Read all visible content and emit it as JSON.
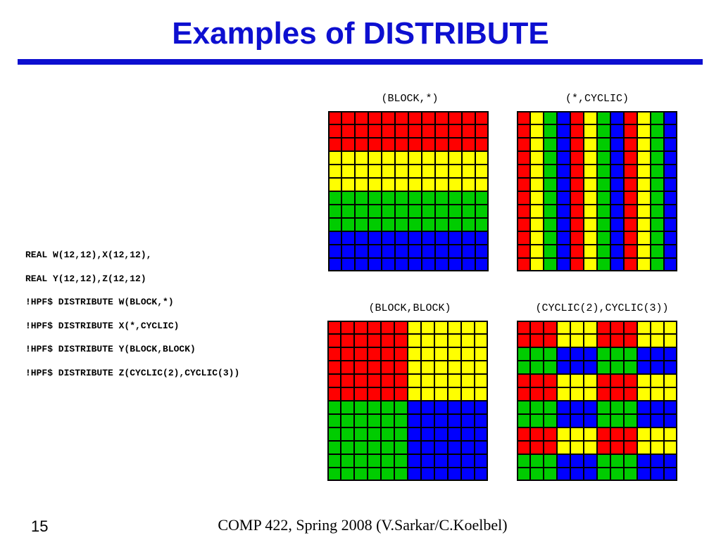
{
  "slide": {
    "title": "Examples of DISTRIBUTE",
    "slide_number": "15",
    "footer": "COMP 422, Spring 2008 (V.Sarkar/C.Koelbel)"
  },
  "code_lines": [
    "REAL W(12,12),X(12,12),",
    "REAL Y(12,12),Z(12,12)",
    "!HPF$ DISTRIBUTE W(BLOCK,*)",
    "!HPF$ DISTRIBUTE X(*,CYCLIC)",
    "!HPF$ DISTRIBUTE Y(BLOCK,BLOCK)",
    "!HPF$ DISTRIBUTE Z(CYCLIC(2),CYCLIC(3))"
  ],
  "colors": {
    "title_blue": "#0d0fd0",
    "processor_colors": [
      "#ff0000",
      "#ffff00",
      "#00cc00",
      "#0000ff"
    ],
    "cell_border": "#000000"
  },
  "grids": [
    {
      "label": "(BLOCK,*)",
      "rows": 12,
      "cols": 12,
      "cells": [
        [
          0,
          0,
          0,
          0,
          0,
          0,
          0,
          0,
          0,
          0,
          0,
          0
        ],
        [
          0,
          0,
          0,
          0,
          0,
          0,
          0,
          0,
          0,
          0,
          0,
          0
        ],
        [
          0,
          0,
          0,
          0,
          0,
          0,
          0,
          0,
          0,
          0,
          0,
          0
        ],
        [
          1,
          1,
          1,
          1,
          1,
          1,
          1,
          1,
          1,
          1,
          1,
          1
        ],
        [
          1,
          1,
          1,
          1,
          1,
          1,
          1,
          1,
          1,
          1,
          1,
          1
        ],
        [
          1,
          1,
          1,
          1,
          1,
          1,
          1,
          1,
          1,
          1,
          1,
          1
        ],
        [
          2,
          2,
          2,
          2,
          2,
          2,
          2,
          2,
          2,
          2,
          2,
          2
        ],
        [
          2,
          2,
          2,
          2,
          2,
          2,
          2,
          2,
          2,
          2,
          2,
          2
        ],
        [
          2,
          2,
          2,
          2,
          2,
          2,
          2,
          2,
          2,
          2,
          2,
          2
        ],
        [
          3,
          3,
          3,
          3,
          3,
          3,
          3,
          3,
          3,
          3,
          3,
          3
        ],
        [
          3,
          3,
          3,
          3,
          3,
          3,
          3,
          3,
          3,
          3,
          3,
          3
        ],
        [
          3,
          3,
          3,
          3,
          3,
          3,
          3,
          3,
          3,
          3,
          3,
          3
        ]
      ]
    },
    {
      "label": "(*,CYCLIC)",
      "rows": 12,
      "cols": 12,
      "cells": [
        [
          0,
          1,
          2,
          3,
          0,
          1,
          2,
          3,
          0,
          1,
          2,
          3
        ],
        [
          0,
          1,
          2,
          3,
          0,
          1,
          2,
          3,
          0,
          1,
          2,
          3
        ],
        [
          0,
          1,
          2,
          3,
          0,
          1,
          2,
          3,
          0,
          1,
          2,
          3
        ],
        [
          0,
          1,
          2,
          3,
          0,
          1,
          2,
          3,
          0,
          1,
          2,
          3
        ],
        [
          0,
          1,
          2,
          3,
          0,
          1,
          2,
          3,
          0,
          1,
          2,
          3
        ],
        [
          0,
          1,
          2,
          3,
          0,
          1,
          2,
          3,
          0,
          1,
          2,
          3
        ],
        [
          0,
          1,
          2,
          3,
          0,
          1,
          2,
          3,
          0,
          1,
          2,
          3
        ],
        [
          0,
          1,
          2,
          3,
          0,
          1,
          2,
          3,
          0,
          1,
          2,
          3
        ],
        [
          0,
          1,
          2,
          3,
          0,
          1,
          2,
          3,
          0,
          1,
          2,
          3
        ],
        [
          0,
          1,
          2,
          3,
          0,
          1,
          2,
          3,
          0,
          1,
          2,
          3
        ],
        [
          0,
          1,
          2,
          3,
          0,
          1,
          2,
          3,
          0,
          1,
          2,
          3
        ],
        [
          0,
          1,
          2,
          3,
          0,
          1,
          2,
          3,
          0,
          1,
          2,
          3
        ]
      ]
    },
    {
      "label": "(BLOCK,BLOCK)",
      "rows": 12,
      "cols": 12,
      "cells": [
        [
          0,
          0,
          0,
          0,
          0,
          0,
          1,
          1,
          1,
          1,
          1,
          1
        ],
        [
          0,
          0,
          0,
          0,
          0,
          0,
          1,
          1,
          1,
          1,
          1,
          1
        ],
        [
          0,
          0,
          0,
          0,
          0,
          0,
          1,
          1,
          1,
          1,
          1,
          1
        ],
        [
          0,
          0,
          0,
          0,
          0,
          0,
          1,
          1,
          1,
          1,
          1,
          1
        ],
        [
          0,
          0,
          0,
          0,
          0,
          0,
          1,
          1,
          1,
          1,
          1,
          1
        ],
        [
          0,
          0,
          0,
          0,
          0,
          0,
          1,
          1,
          1,
          1,
          1,
          1
        ],
        [
          2,
          2,
          2,
          2,
          2,
          2,
          3,
          3,
          3,
          3,
          3,
          3
        ],
        [
          2,
          2,
          2,
          2,
          2,
          2,
          3,
          3,
          3,
          3,
          3,
          3
        ],
        [
          2,
          2,
          2,
          2,
          2,
          2,
          3,
          3,
          3,
          3,
          3,
          3
        ],
        [
          2,
          2,
          2,
          2,
          2,
          2,
          3,
          3,
          3,
          3,
          3,
          3
        ],
        [
          2,
          2,
          2,
          2,
          2,
          2,
          3,
          3,
          3,
          3,
          3,
          3
        ],
        [
          2,
          2,
          2,
          2,
          2,
          2,
          3,
          3,
          3,
          3,
          3,
          3
        ]
      ]
    },
    {
      "label": "(CYCLIC(2),CYCLIC(3))",
      "rows": 12,
      "cols": 12,
      "cells": [
        [
          0,
          0,
          0,
          1,
          1,
          1,
          0,
          0,
          0,
          1,
          1,
          1
        ],
        [
          0,
          0,
          0,
          1,
          1,
          1,
          0,
          0,
          0,
          1,
          1,
          1
        ],
        [
          2,
          2,
          2,
          3,
          3,
          3,
          2,
          2,
          2,
          3,
          3,
          3
        ],
        [
          2,
          2,
          2,
          3,
          3,
          3,
          2,
          2,
          2,
          3,
          3,
          3
        ],
        [
          0,
          0,
          0,
          1,
          1,
          1,
          0,
          0,
          0,
          1,
          1,
          1
        ],
        [
          0,
          0,
          0,
          1,
          1,
          1,
          0,
          0,
          0,
          1,
          1,
          1
        ],
        [
          2,
          2,
          2,
          3,
          3,
          3,
          2,
          2,
          2,
          3,
          3,
          3
        ],
        [
          2,
          2,
          2,
          3,
          3,
          3,
          2,
          2,
          2,
          3,
          3,
          3
        ],
        [
          0,
          0,
          0,
          1,
          1,
          1,
          0,
          0,
          0,
          1,
          1,
          1
        ],
        [
          0,
          0,
          0,
          1,
          1,
          1,
          0,
          0,
          0,
          1,
          1,
          1
        ],
        [
          2,
          2,
          2,
          3,
          3,
          3,
          2,
          2,
          2,
          3,
          3,
          3
        ],
        [
          2,
          2,
          2,
          3,
          3,
          3,
          2,
          2,
          2,
          3,
          3,
          3
        ]
      ]
    }
  ]
}
